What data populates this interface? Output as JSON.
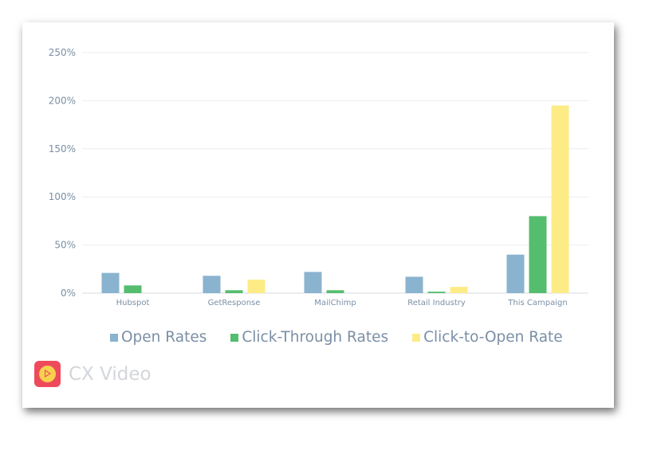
{
  "chart_data": {
    "type": "bar",
    "categories": [
      "Hubspot",
      "GetResponse",
      "MailChimp",
      "Retail Industry",
      "This Campaign"
    ],
    "series": [
      {
        "name": "Open Rates",
        "color": "#8ab3cf",
        "values": [
          21,
          18,
          22,
          17,
          40
        ]
      },
      {
        "name": "Click-Through Rates",
        "color": "#55bd6e",
        "values": [
          8,
          3,
          3,
          1.5,
          80
        ]
      },
      {
        "name": "Click-to-Open Rate",
        "color": "#fdec86",
        "values": [
          0,
          14,
          0,
          6.5,
          195
        ]
      }
    ],
    "yticks": [
      "0%",
      "50%",
      "100%",
      "150%",
      "200%",
      "250%"
    ],
    "ylim": [
      0,
      250
    ],
    "grid": true,
    "legend_position": "bottom"
  },
  "brand": {
    "name": "CX Video",
    "logo_icon": "play-icon"
  }
}
